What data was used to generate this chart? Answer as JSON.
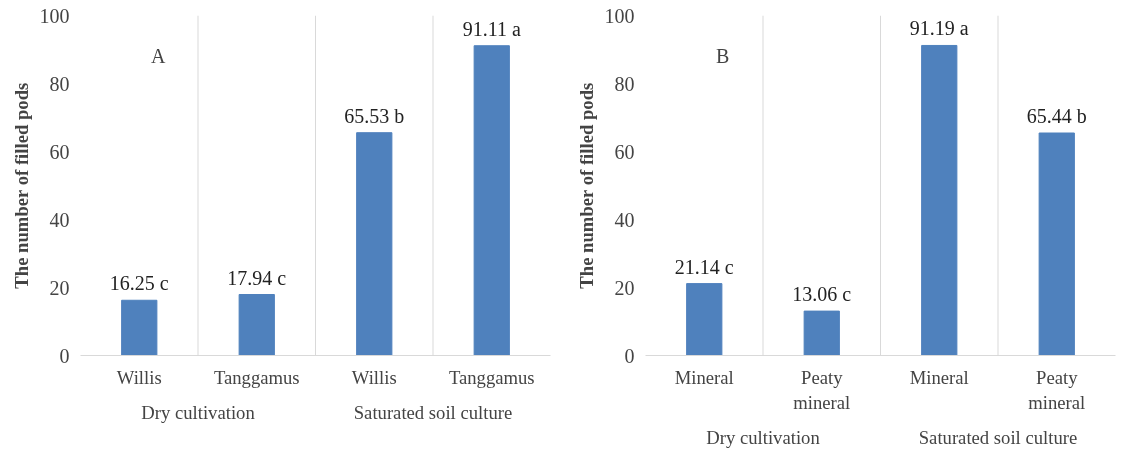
{
  "chart_data": [
    {
      "type": "bar",
      "ylabel": "The number of filled pods",
      "categories": [
        "Willis",
        "Tanggamus",
        "Willis",
        "Tanggamus"
      ],
      "values": [
        16.25,
        17.94,
        65.53,
        91.11
      ],
      "value_labels": [
        "16.25 c",
        "17.94 c",
        "65.53 b",
        "91.11 a"
      ],
      "color": "#4f81bd",
      "ylim": [
        0,
        100
      ],
      "yticks": [
        0,
        20,
        40,
        60,
        80,
        100
      ],
      "grid": "x",
      "annotations": [
        "A",
        "Dry cultivation",
        "Saturated soil culture"
      ]
    },
    {
      "type": "bar",
      "ylabel": "The number of filled pods",
      "categories": [
        "Mineral",
        "Peaty\nmineral",
        "Mineral",
        "Peaty\nmineral"
      ],
      "values": [
        21.14,
        13.06,
        91.19,
        65.44
      ],
      "value_labels": [
        "21.14 c",
        "13.06 c",
        "91.19 a",
        "65.44 b"
      ],
      "color": "#4f81bd",
      "ylim": [
        0,
        100
      ],
      "yticks": [
        0,
        20,
        40,
        60,
        80,
        100
      ],
      "grid": "x",
      "annotations": [
        "B",
        "Dry cultivation",
        "Saturated soil culture"
      ]
    }
  ]
}
